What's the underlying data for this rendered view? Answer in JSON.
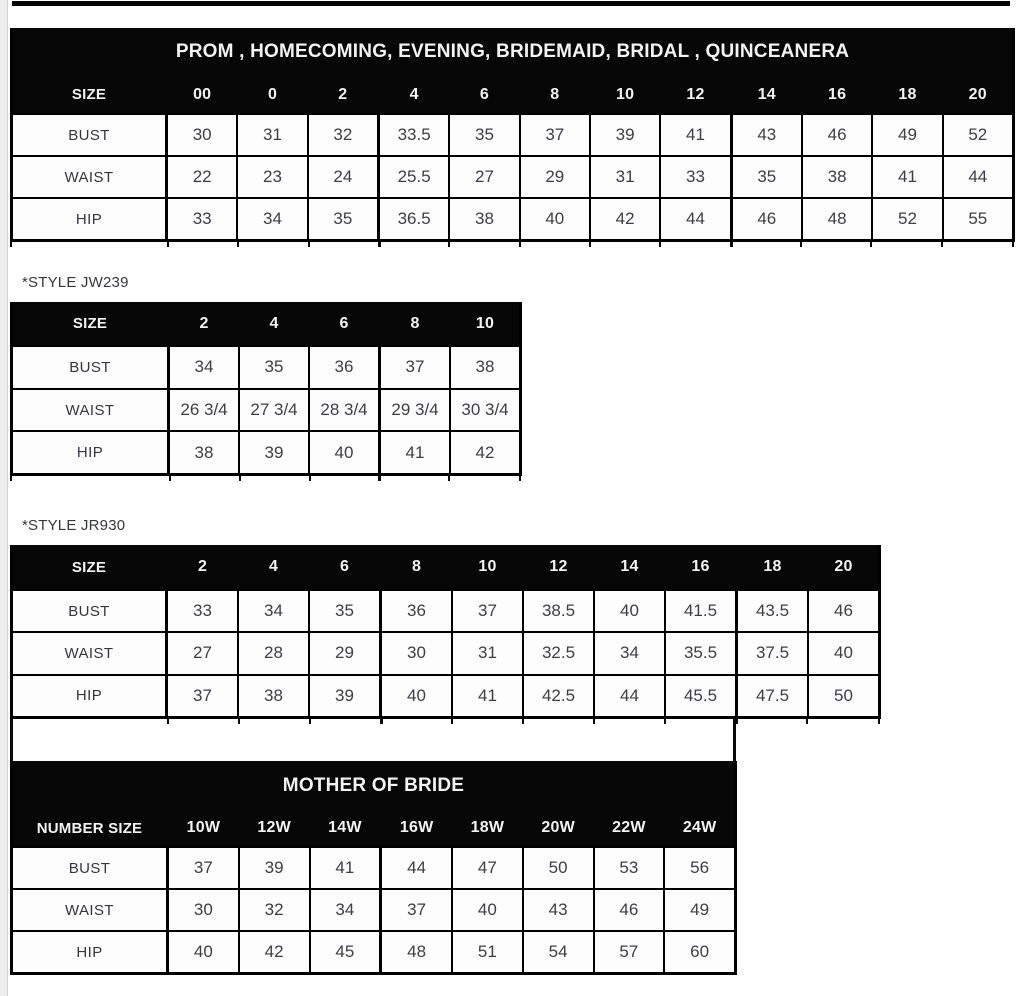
{
  "captions": {
    "jw239": "*STYLE JW239",
    "jr930": "*STYLE JR930"
  },
  "colors": {
    "header_bg": "#060606",
    "header_text": "#f3f3f3",
    "body_text": "#3e3e44",
    "border": "#000000",
    "margin_strip": "#ededed"
  },
  "tables": [
    {
      "key": "prom",
      "title": "PROM , HOMECOMING, EVENING, BRIDEMAID, BRIDAL , QUINCEANERA",
      "header_label": "SIZE",
      "sizes": [
        "00",
        "0",
        "2",
        "4",
        "6",
        "8",
        "10",
        "12",
        "14",
        "16",
        "18",
        "20"
      ],
      "rows": [
        {
          "label": "BUST",
          "values": [
            "30",
            "31",
            "32",
            "33.5",
            "35",
            "37",
            "39",
            "41",
            "43",
            "46",
            "49",
            "52"
          ]
        },
        {
          "label": "WAIST",
          "values": [
            "22",
            "23",
            "24",
            "25.5",
            "27",
            "29",
            "31",
            "33",
            "35",
            "38",
            "41",
            "44"
          ]
        },
        {
          "label": "HIP",
          "values": [
            "33",
            "34",
            "35",
            "36.5",
            "38",
            "40",
            "42",
            "44",
            "46",
            "48",
            "52",
            "55"
          ]
        }
      ]
    },
    {
      "key": "jw239",
      "title": null,
      "header_label": "SIZE",
      "sizes": [
        "2",
        "4",
        "6",
        "8",
        "10"
      ],
      "rows": [
        {
          "label": "BUST",
          "values": [
            "34",
            "35",
            "36",
            "37",
            "38"
          ]
        },
        {
          "label": "WAIST",
          "values": [
            "26 3/4",
            "27 3/4",
            "28 3/4",
            "29 3/4",
            "30 3/4"
          ]
        },
        {
          "label": "HIP",
          "values": [
            "38",
            "39",
            "40",
            "41",
            "42"
          ]
        }
      ]
    },
    {
      "key": "jr930",
      "title": null,
      "header_label": "SIZE",
      "sizes": [
        "2",
        "4",
        "6",
        "8",
        "10",
        "12",
        "14",
        "16",
        "18",
        "20"
      ],
      "rows": [
        {
          "label": "BUST",
          "values": [
            "33",
            "34",
            "35",
            "36",
            "37",
            "38.5",
            "40",
            "41.5",
            "43.5",
            "46"
          ]
        },
        {
          "label": "WAIST",
          "values": [
            "27",
            "28",
            "29",
            "30",
            "31",
            "32.5",
            "34",
            "35.5",
            "37.5",
            "40"
          ]
        },
        {
          "label": "HIP",
          "values": [
            "37",
            "38",
            "39",
            "40",
            "41",
            "42.5",
            "44",
            "45.5",
            "47.5",
            "50"
          ]
        }
      ]
    },
    {
      "key": "mother_of_bride",
      "title": "MOTHER OF BRIDE",
      "header_label": "NUMBER SIZE",
      "sizes": [
        "10W",
        "12W",
        "14W",
        "16W",
        "18W",
        "20W",
        "22W",
        "24W"
      ],
      "rows": [
        {
          "label": "BUST",
          "values": [
            "37",
            "39",
            "41",
            "44",
            "47",
            "50",
            "53",
            "56"
          ]
        },
        {
          "label": "WAIST",
          "values": [
            "30",
            "32",
            "34",
            "37",
            "40",
            "43",
            "46",
            "49"
          ]
        },
        {
          "label": "HIP",
          "values": [
            "40",
            "42",
            "45",
            "48",
            "51",
            "54",
            "57",
            "60"
          ]
        }
      ]
    }
  ]
}
